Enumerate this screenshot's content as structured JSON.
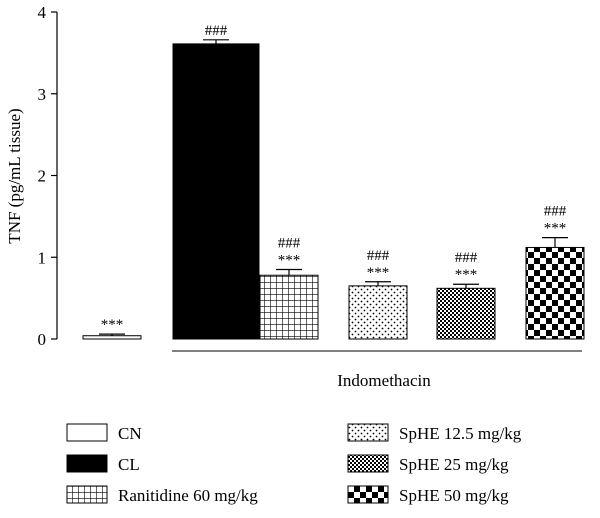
{
  "chart_data": {
    "type": "bar",
    "ylabel": "TNF (pg/mL tissue)",
    "ylim": [
      0,
      4
    ],
    "yticks": [
      "0",
      "1",
      "2",
      "3",
      "4"
    ],
    "group_label": "Indomethacin",
    "bars": [
      {
        "name": "CN",
        "value": 0.04,
        "error": 0.02,
        "pattern": "white",
        "sig": [
          "***"
        ]
      },
      {
        "name": "CL",
        "value": 3.61,
        "error": 0.05,
        "pattern": "black",
        "sig": [
          "###"
        ]
      },
      {
        "name": "Ranitidine 60 mg/kg",
        "value": 0.78,
        "error": 0.07,
        "pattern": "grid",
        "sig": [
          "###",
          "***"
        ]
      },
      {
        "name": "SpHE 12.5 mg/kg",
        "value": 0.65,
        "error": 0.05,
        "pattern": "dots",
        "sig": [
          "###",
          "***"
        ]
      },
      {
        "name": "SpHE 25 mg/kg",
        "value": 0.62,
        "error": 0.05,
        "pattern": "fine-check",
        "sig": [
          "###",
          "***"
        ]
      },
      {
        "name": "SpHE 50 mg/kg",
        "value": 1.12,
        "error": 0.12,
        "pattern": "checker",
        "sig": [
          "###",
          "***"
        ]
      }
    ]
  }
}
